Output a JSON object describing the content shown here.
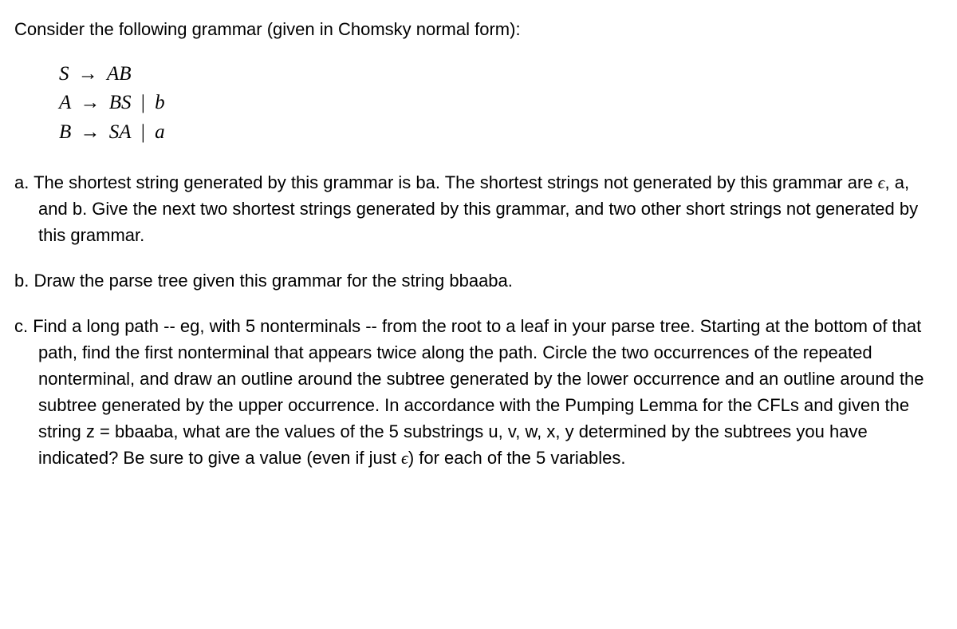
{
  "intro": "Consider the following grammar (given in Chomsky normal form):",
  "grammar": {
    "line1": {
      "lhs": "S",
      "rhs": "AB"
    },
    "line2": {
      "lhs": "A",
      "rhs1": "BS",
      "rhs2": "b"
    },
    "line3": {
      "lhs": "B",
      "rhs1": "SA",
      "rhs2": "a"
    }
  },
  "qa": {
    "label": "a. ",
    "part1": "The shortest string generated by this grammar is ",
    "code1": "ba",
    "part2": ". The shortest strings not generated by this grammar are ",
    "eps": "ϵ",
    "part3": ", ",
    "code2": "a",
    "part4": ", and ",
    "code3": "b",
    "part5": ". Give the next two shortest strings generated by this grammar, and two other short strings not generated by this grammar."
  },
  "qb": {
    "label": "b. ",
    "part1": "Draw the parse tree given this grammar for the string ",
    "code1": "bbaaba",
    "part2": "."
  },
  "qc": {
    "label": "c. ",
    "part1": "Find a long path -- eg, with 5 nonterminals -- from the root to a leaf in your parse tree. Starting at the bottom of that path, find the first nonterminal that appears twice along the path. Circle the two occurrences of the repeated nonterminal, and draw an outline around the subtree generated by the lower occurrence and an outline around the subtree generated by the upper occurrence. In accordance with the Pumping Lemma for the CFLs and given the string z = ",
    "code1": "bbaaba",
    "part2": ", what are the values of the 5 substrings u, v, w, x, y determined by the subtrees you have indicated? Be sure to give a value (even if just ",
    "eps": "ϵ",
    "part3": ") for each of the 5 variables."
  }
}
